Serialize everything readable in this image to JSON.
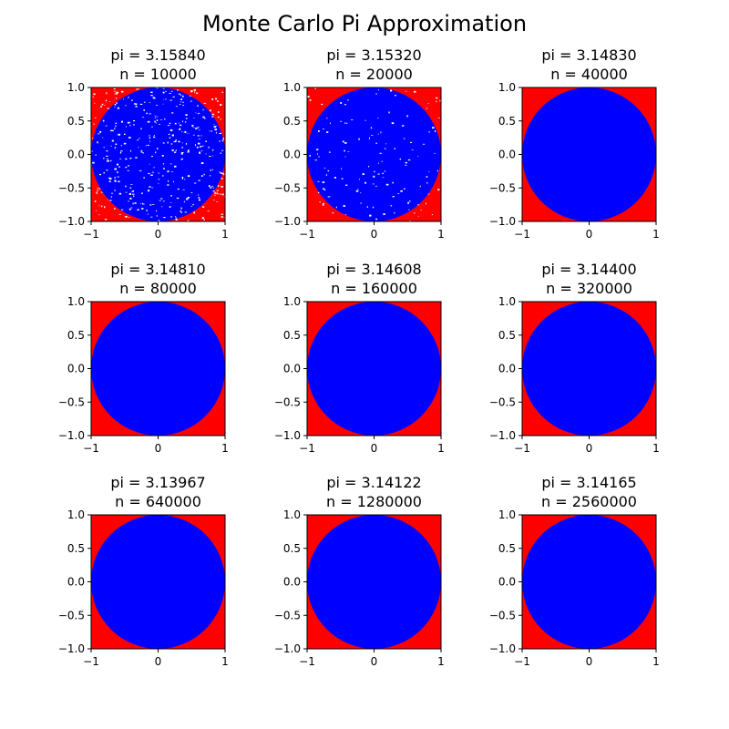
{
  "figure": {
    "suptitle": "Monte Carlo Pi Approximation"
  },
  "colors": {
    "outside": "#ff0000",
    "inside": "#0000ff",
    "speckle": "#ffffff",
    "axis": "#000000"
  },
  "chart_data": [
    {
      "type": "scatter",
      "title_line1": "pi = 3.15840",
      "title_line2": "n = 10000",
      "n": 10000,
      "pi_estimate": 3.1584,
      "xlim": [
        -1,
        1
      ],
      "ylim": [
        -1,
        1
      ],
      "xticks": [
        "−1",
        "0",
        "1"
      ],
      "yticks": [
        "−1.0",
        "−0.5",
        "0.0",
        "0.5",
        "1.0"
      ],
      "series": [
        {
          "name": "inside",
          "color": "#0000ff"
        },
        {
          "name": "outside",
          "color": "#ff0000"
        }
      ]
    },
    {
      "type": "scatter",
      "title_line1": "pi = 3.15320",
      "title_line2": "n = 20000",
      "n": 20000,
      "pi_estimate": 3.1532,
      "xlim": [
        -1,
        1
      ],
      "ylim": [
        -1,
        1
      ],
      "xticks": [
        "−1",
        "0",
        "1"
      ],
      "yticks": [
        "−1.0",
        "−0.5",
        "0.0",
        "0.5",
        "1.0"
      ],
      "series": [
        {
          "name": "inside",
          "color": "#0000ff"
        },
        {
          "name": "outside",
          "color": "#ff0000"
        }
      ]
    },
    {
      "type": "scatter",
      "title_line1": "pi = 3.14830",
      "title_line2": "n = 40000",
      "n": 40000,
      "pi_estimate": 3.1483,
      "xlim": [
        -1,
        1
      ],
      "ylim": [
        -1,
        1
      ],
      "xticks": [
        "−1",
        "0",
        "1"
      ],
      "yticks": [
        "−1.0",
        "−0.5",
        "0.0",
        "0.5",
        "1.0"
      ],
      "series": [
        {
          "name": "inside",
          "color": "#0000ff"
        },
        {
          "name": "outside",
          "color": "#ff0000"
        }
      ]
    },
    {
      "type": "scatter",
      "title_line1": "pi = 3.14810",
      "title_line2": "n = 80000",
      "n": 80000,
      "pi_estimate": 3.1481,
      "xlim": [
        -1,
        1
      ],
      "ylim": [
        -1,
        1
      ],
      "xticks": [
        "−1",
        "0",
        "1"
      ],
      "yticks": [
        "−1.0",
        "−0.5",
        "0.0",
        "0.5",
        "1.0"
      ],
      "series": [
        {
          "name": "inside",
          "color": "#0000ff"
        },
        {
          "name": "outside",
          "color": "#ff0000"
        }
      ]
    },
    {
      "type": "scatter",
      "title_line1": "pi = 3.14608",
      "title_line2": "n = 160000",
      "n": 160000,
      "pi_estimate": 3.14608,
      "xlim": [
        -1,
        1
      ],
      "ylim": [
        -1,
        1
      ],
      "xticks": [
        "−1",
        "0",
        "1"
      ],
      "yticks": [
        "−1.0",
        "−0.5",
        "0.0",
        "0.5",
        "1.0"
      ],
      "series": [
        {
          "name": "inside",
          "color": "#0000ff"
        },
        {
          "name": "outside",
          "color": "#ff0000"
        }
      ]
    },
    {
      "type": "scatter",
      "title_line1": "pi = 3.14400",
      "title_line2": "n = 320000",
      "n": 320000,
      "pi_estimate": 3.144,
      "xlim": [
        -1,
        1
      ],
      "ylim": [
        -1,
        1
      ],
      "xticks": [
        "−1",
        "0",
        "1"
      ],
      "yticks": [
        "−1.0",
        "−0.5",
        "0.0",
        "0.5",
        "1.0"
      ],
      "series": [
        {
          "name": "inside",
          "color": "#0000ff"
        },
        {
          "name": "outside",
          "color": "#ff0000"
        }
      ]
    },
    {
      "type": "scatter",
      "title_line1": "pi = 3.13967",
      "title_line2": "n = 640000",
      "n": 640000,
      "pi_estimate": 3.13967,
      "xlim": [
        -1,
        1
      ],
      "ylim": [
        -1,
        1
      ],
      "xticks": [
        "−1",
        "0",
        "1"
      ],
      "yticks": [
        "−1.0",
        "−0.5",
        "0.0",
        "0.5",
        "1.0"
      ],
      "series": [
        {
          "name": "inside",
          "color": "#0000ff"
        },
        {
          "name": "outside",
          "color": "#ff0000"
        }
      ]
    },
    {
      "type": "scatter",
      "title_line1": "pi = 3.14122",
      "title_line2": "n = 1280000",
      "n": 1280000,
      "pi_estimate": 3.14122,
      "xlim": [
        -1,
        1
      ],
      "ylim": [
        -1,
        1
      ],
      "xticks": [
        "−1",
        "0",
        "1"
      ],
      "yticks": [
        "−1.0",
        "−0.5",
        "0.0",
        "0.5",
        "1.0"
      ],
      "series": [
        {
          "name": "inside",
          "color": "#0000ff"
        },
        {
          "name": "outside",
          "color": "#ff0000"
        }
      ]
    },
    {
      "type": "scatter",
      "title_line1": "pi = 3.14165",
      "title_line2": "n = 2560000",
      "n": 2560000,
      "pi_estimate": 3.14165,
      "xlim": [
        -1,
        1
      ],
      "ylim": [
        -1,
        1
      ],
      "xticks": [
        "−1",
        "0",
        "1"
      ],
      "yticks": [
        "−1.0",
        "−0.5",
        "0.0",
        "0.5",
        "1.0"
      ],
      "series": [
        {
          "name": "inside",
          "color": "#0000ff"
        },
        {
          "name": "outside",
          "color": "#ff0000"
        }
      ]
    }
  ]
}
